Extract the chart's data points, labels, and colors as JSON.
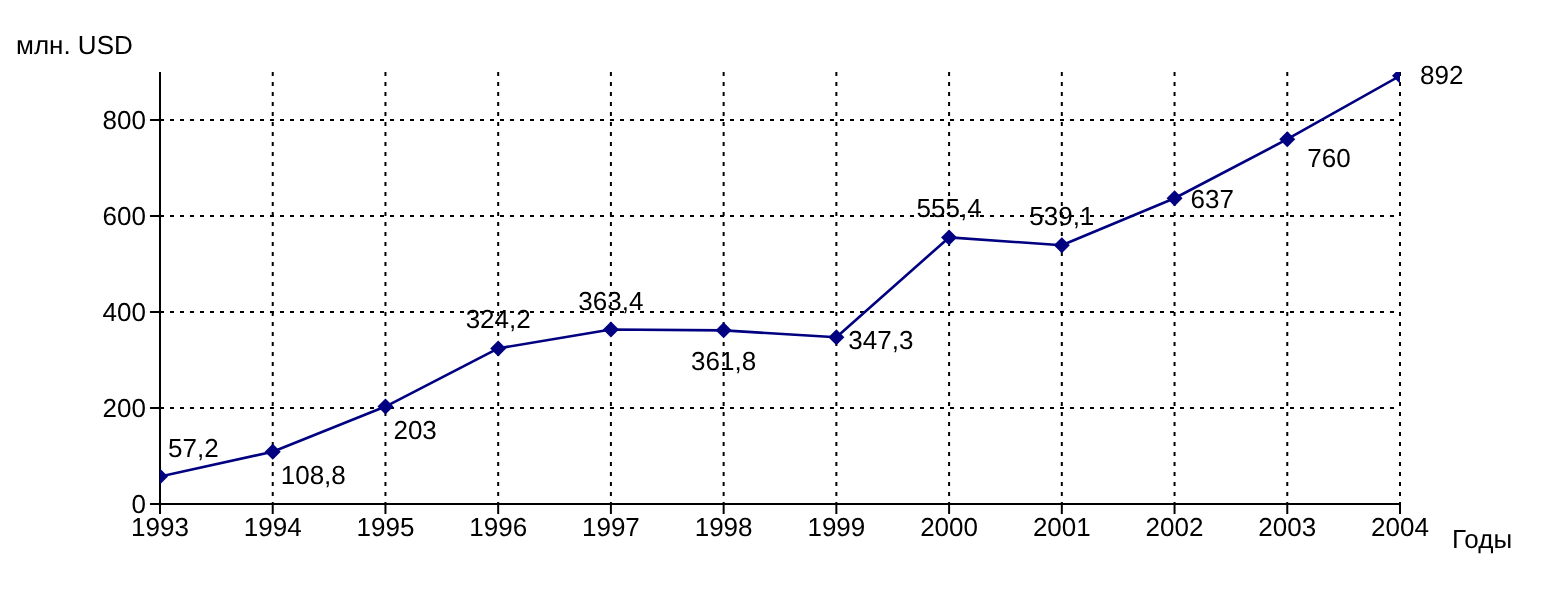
{
  "chart_data": {
    "type": "line",
    "xlabel": "Годы",
    "ylabel": "млн. USD",
    "x": [
      1993,
      1994,
      1995,
      1996,
      1997,
      1998,
      1999,
      2000,
      2001,
      2002,
      2003,
      2004
    ],
    "series": [
      {
        "color": "#000080",
        "values": [
          57.2,
          108.8,
          203,
          324.2,
          363.4,
          361.8,
          347.3,
          555.4,
          539.1,
          637,
          760,
          892
        ],
        "value_labels": [
          "57,2",
          "108,8",
          "203",
          "324,2",
          "363,4",
          "361,8",
          "347,3",
          "555,4",
          "539,1",
          "637",
          "760",
          "892"
        ]
      }
    ],
    "xlim": [
      1993,
      2004
    ],
    "xticks": [
      1993,
      1994,
      1995,
      1996,
      1997,
      1998,
      1999,
      2000,
      2001,
      2002,
      2003,
      2004
    ],
    "ylim": [
      0,
      900
    ],
    "yticks": [
      0,
      200,
      400,
      600,
      800
    ],
    "grid": true,
    "marker": "diamond"
  }
}
